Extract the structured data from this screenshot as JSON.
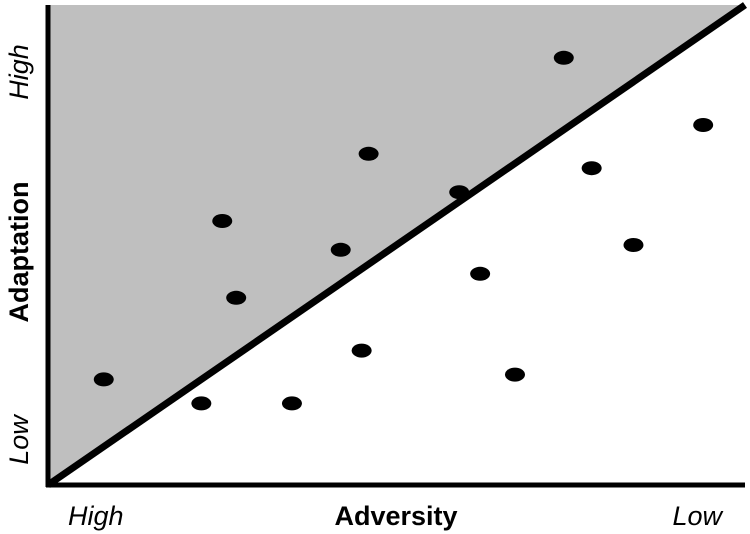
{
  "diagram": {
    "x_axis": {
      "label": "Adversity",
      "start_label": "High",
      "end_label": "Low"
    },
    "y_axis": {
      "label": "Adaptation",
      "start_label": "Low",
      "end_label": "High"
    },
    "colors": {
      "shaded_region": "#bfbfbf",
      "axis": "#000000",
      "diagonal": "#000000",
      "point": "#000000",
      "background": "#ffffff"
    }
  },
  "chart_data": {
    "type": "scatter",
    "xlim": [
      0,
      100
    ],
    "ylim": [
      0,
      100
    ],
    "diagonal_line": {
      "from": [
        0,
        0
      ],
      "to": [
        100,
        100
      ]
    },
    "points_above_diagonal": [
      {
        "x": 8,
        "y": 22
      },
      {
        "x": 25,
        "y": 55
      },
      {
        "x": 27,
        "y": 39
      },
      {
        "x": 42,
        "y": 49
      },
      {
        "x": 46,
        "y": 69
      },
      {
        "x": 59,
        "y": 61
      },
      {
        "x": 74,
        "y": 89
      }
    ],
    "points_below_diagonal": [
      {
        "x": 22,
        "y": 17
      },
      {
        "x": 35,
        "y": 17
      },
      {
        "x": 45,
        "y": 28
      },
      {
        "x": 62,
        "y": 44
      },
      {
        "x": 67,
        "y": 23
      },
      {
        "x": 78,
        "y": 66
      },
      {
        "x": 84,
        "y": 50
      },
      {
        "x": 94,
        "y": 75
      }
    ]
  }
}
